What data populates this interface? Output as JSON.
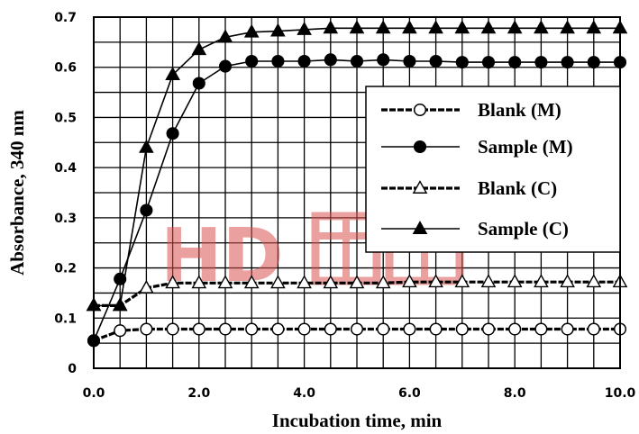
{
  "chart_data": {
    "type": "line",
    "xlabel": "Incubation time, min",
    "ylabel": "Absorbance, 340 nm",
    "xlim": [
      0,
      10
    ],
    "ylim": [
      0,
      0.7
    ],
    "x_ticks": [
      "0.0",
      "2.0",
      "4.0",
      "6.0",
      "8.0",
      "10.0"
    ],
    "y_ticks": [
      "0",
      "0.1",
      "0.2",
      "0.3",
      "0.4",
      "0.5",
      "0.6",
      "0.7"
    ],
    "grid": true,
    "legend_position": "right",
    "watermark_text": "HD",
    "watermark_color": "#d9534f",
    "series": [
      {
        "name": "Blank (M)",
        "marker": "circle-open",
        "line": "dashed",
        "x": [
          0,
          0.5,
          1,
          1.5,
          2,
          2.5,
          3,
          3.5,
          4,
          4.5,
          5,
          5.5,
          6,
          6.5,
          7,
          7.5,
          8,
          8.5,
          9,
          9.5,
          10
        ],
        "y": [
          0.055,
          0.075,
          0.078,
          0.078,
          0.078,
          0.078,
          0.078,
          0.078,
          0.078,
          0.078,
          0.078,
          0.078,
          0.078,
          0.078,
          0.078,
          0.078,
          0.078,
          0.078,
          0.078,
          0.078,
          0.078
        ]
      },
      {
        "name": "Sample (M)",
        "marker": "circle-filled",
        "line": "solid",
        "x": [
          0,
          0.5,
          1,
          1.5,
          2,
          2.5,
          3,
          3.5,
          4,
          4.5,
          5,
          5.5,
          6,
          6.5,
          7,
          7.5,
          8,
          8.5,
          9,
          9.5,
          10
        ],
        "y": [
          0.055,
          0.178,
          0.315,
          0.468,
          0.568,
          0.602,
          0.612,
          0.612,
          0.612,
          0.615,
          0.612,
          0.615,
          0.612,
          0.612,
          0.61,
          0.61,
          0.61,
          0.61,
          0.61,
          0.61,
          0.61
        ]
      },
      {
        "name": "Blank (C)",
        "marker": "triangle-open",
        "line": "dashed",
        "x": [
          0,
          0.5,
          1,
          1.5,
          2,
          2.5,
          3,
          3.5,
          4,
          4.5,
          5,
          5.5,
          6,
          6.5,
          7,
          7.5,
          8,
          8.5,
          9,
          9.5,
          10
        ],
        "y": [
          0.125,
          0.125,
          0.16,
          0.17,
          0.17,
          0.17,
          0.17,
          0.17,
          0.17,
          0.17,
          0.17,
          0.17,
          0.172,
          0.172,
          0.172,
          0.172,
          0.172,
          0.172,
          0.172,
          0.172,
          0.172
        ]
      },
      {
        "name": "Sample (C)",
        "marker": "triangle-filled",
        "line": "solid",
        "x": [
          0,
          0.5,
          1,
          1.5,
          2,
          2.5,
          3,
          3.5,
          4,
          4.5,
          5,
          5.5,
          6,
          6.5,
          7,
          7.5,
          8,
          8.5,
          9,
          9.5,
          10
        ],
        "y": [
          0.125,
          0.125,
          0.44,
          0.585,
          0.635,
          0.66,
          0.67,
          0.672,
          0.675,
          0.678,
          0.678,
          0.678,
          0.678,
          0.678,
          0.678,
          0.678,
          0.678,
          0.678,
          0.678,
          0.678,
          0.678
        ]
      }
    ]
  }
}
